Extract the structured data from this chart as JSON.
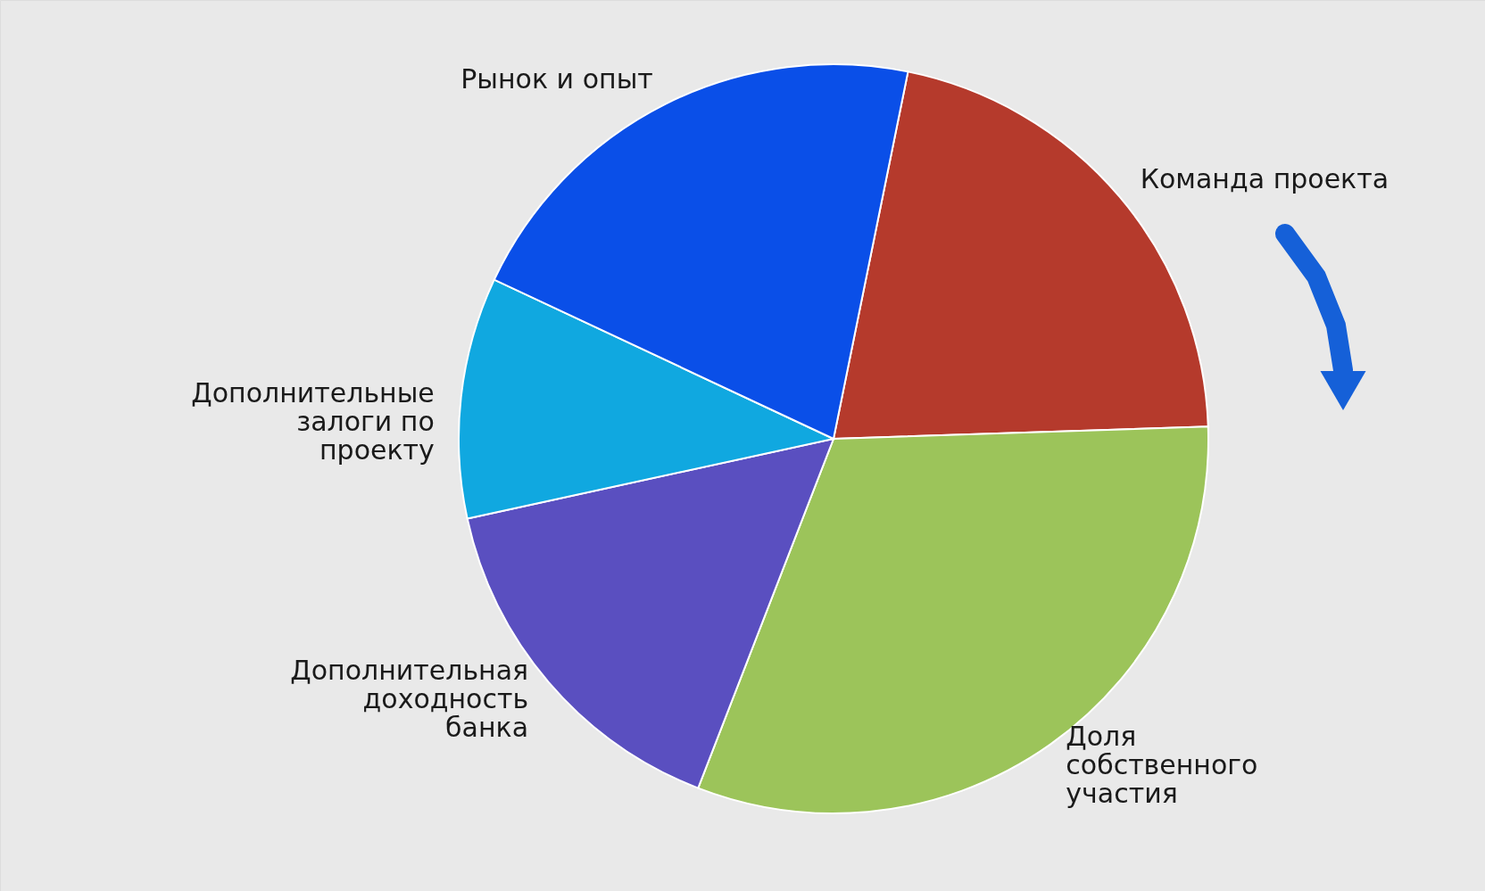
{
  "chart_data": {
    "type": "pie",
    "categories": [
      "Команда проекта",
      "Доля собственного участия",
      "Дополнительная доходность банка",
      "Дополнительные залоги по проекту",
      "Рынок и опыт"
    ],
    "values": [
      21.3,
      31.4,
      15.7,
      10.4,
      21.2
    ],
    "colors": [
      "#b53a2c",
      "#9cc45a",
      "#5a4fc0",
      "#10a8e0",
      "#0a4fe8"
    ]
  }
}
